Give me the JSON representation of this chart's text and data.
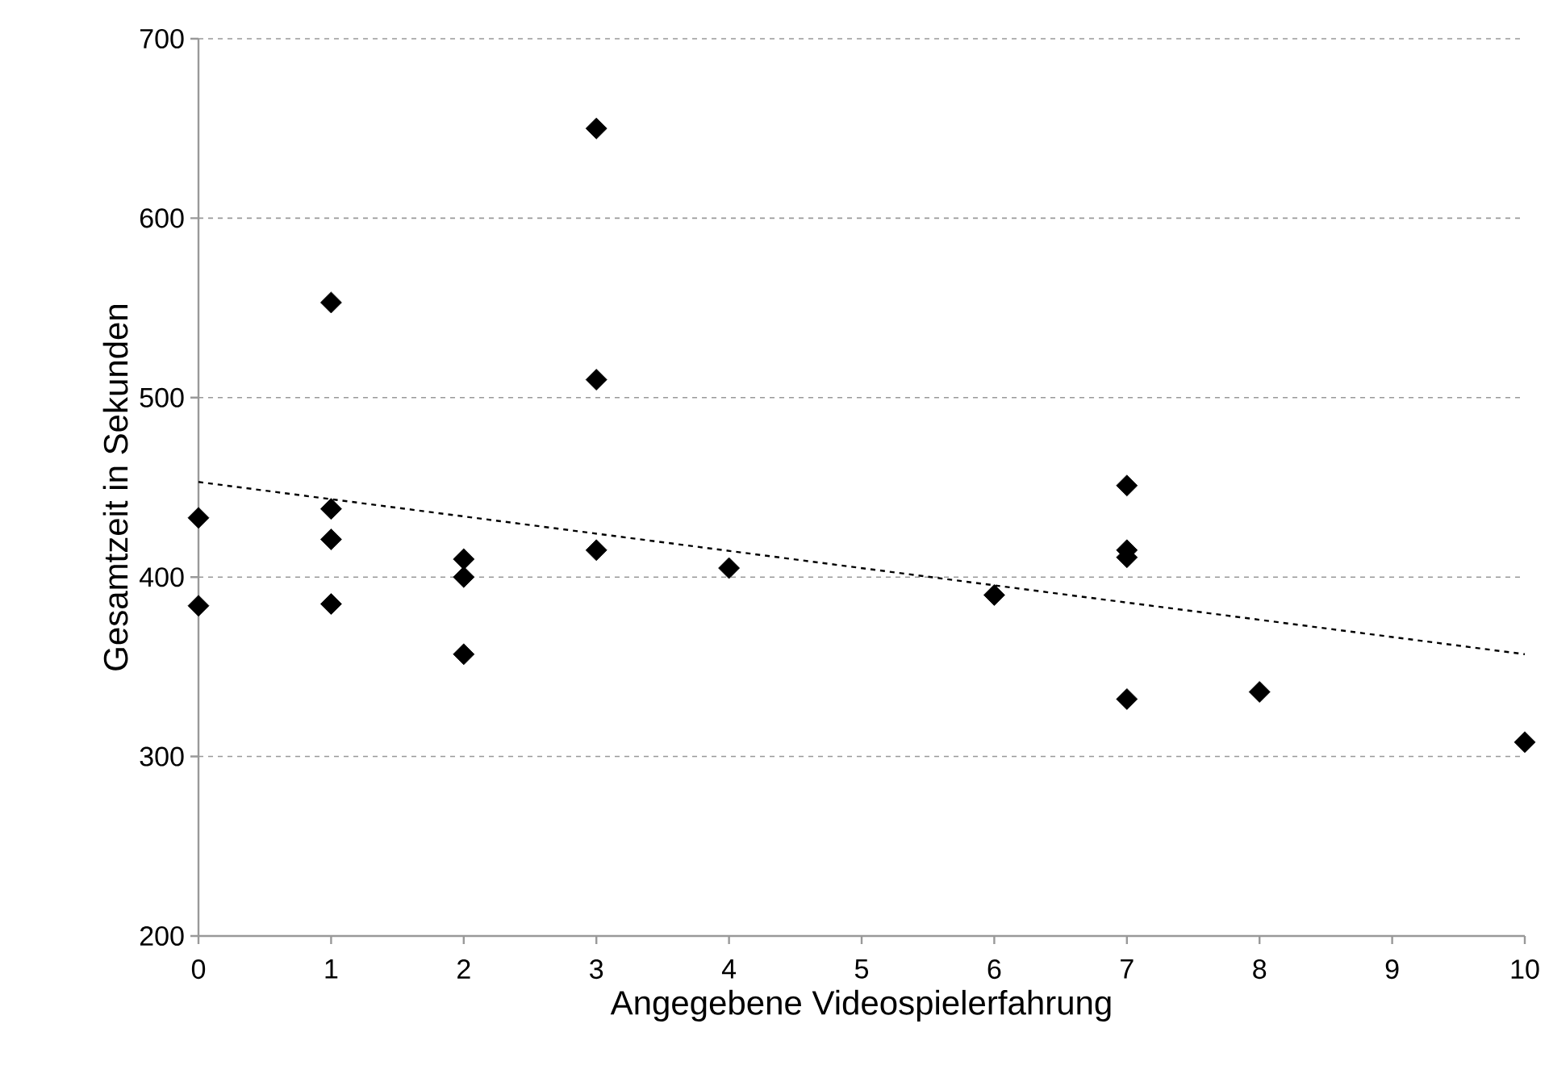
{
  "chart_data": {
    "type": "scatter",
    "xlabel": "Angegebene Videospielerfahrung",
    "ylabel": "Gesamtzeit in Sekunden",
    "xlim": [
      0,
      10
    ],
    "xticks": [
      0,
      1,
      2,
      3,
      4,
      5,
      6,
      7,
      8,
      9,
      10
    ],
    "ylim": [
      200,
      700
    ],
    "yticks": [
      200,
      300,
      400,
      500,
      600,
      700
    ],
    "grid": "y",
    "series": [
      {
        "type": "scatter",
        "color": "#000000",
        "marker": "diamond",
        "x": [
          0,
          0,
          1,
          1,
          1,
          1,
          2,
          2,
          2,
          3,
          3,
          3,
          4,
          6,
          7,
          7,
          7,
          7,
          8,
          10
        ],
        "values": [
          433,
          384,
          553,
          438,
          421,
          385,
          410,
          400,
          357,
          650,
          510,
          415,
          405,
          390,
          451,
          415,
          411,
          332,
          336,
          308
        ]
      },
      {
        "type": "line",
        "color": "#000000",
        "line_style": "dashed",
        "marker": "none",
        "x": [
          0,
          10
        ],
        "values": [
          453,
          357
        ]
      }
    ]
  }
}
